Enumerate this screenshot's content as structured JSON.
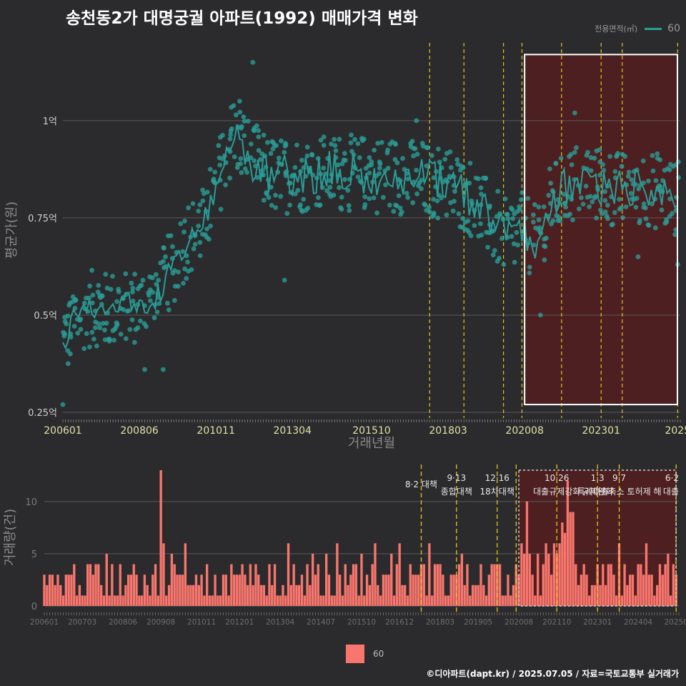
{
  "title": "송천동2가 대명궁궐 아파트(1992) 매매가격 변화",
  "caption": "©디아파트(dapt.kr) / 2025.07.05 / 자료=국토교통부 실거래가",
  "colors": {
    "background": "#2b2b2d",
    "price_line": "#2a9d97",
    "price_point": "#2a9d97",
    "volume_bar": "#f8766d",
    "policy_line": "#e6c619",
    "highlight_fill": "#5a1c1e",
    "grid": "#5a5a5a"
  },
  "legend_top": {
    "title": "전용면적(㎡)",
    "label": "60"
  },
  "legend_bottom": {
    "label": "60"
  },
  "chart_data": [
    {
      "type": "line",
      "xlabel": "거래년월",
      "ylabel": "평균가(원)",
      "x_range": [
        "2006-01",
        "2025-07"
      ],
      "ylim": [
        0.25,
        1.2
      ],
      "y_ticks": [
        {
          "value": 0.25,
          "label": "0.25억"
        },
        {
          "value": 0.5,
          "label": "0.5억"
        },
        {
          "value": 0.75,
          "label": "0.75억"
        },
        {
          "value": 1.0,
          "label": "1억"
        }
      ],
      "x_ticks": [
        "200601",
        "200806",
        "201011",
        "201304",
        "201510",
        "201803",
        "202008",
        "202301",
        "202506"
      ],
      "x_tick_labels": [
        "200601",
        "200806",
        "201011",
        "201304",
        "201510",
        "201803",
        "202008",
        "202301",
        "2025"
      ],
      "policy_lines": [
        "2017-08",
        "2018-09",
        "2019-12",
        "2020-07",
        "2021-10",
        "2023-01",
        "2023-09",
        "2025-06"
      ],
      "highlight_range": [
        "2020-08",
        "2025-07"
      ],
      "series": [
        {
          "name": "60",
          "anchors": [
            [
              "2006-01",
              0.42
            ],
            [
              "2006-06",
              0.5
            ],
            [
              "2007-01",
              0.52
            ],
            [
              "2007-06",
              0.51
            ],
            [
              "2008-01",
              0.53
            ],
            [
              "2008-06",
              0.52
            ],
            [
              "2009-01",
              0.55
            ],
            [
              "2009-06",
              0.62
            ],
            [
              "2009-12",
              0.69
            ],
            [
              "2010-06",
              0.73
            ],
            [
              "2010-11",
              0.82
            ],
            [
              "2011-03",
              0.92
            ],
            [
              "2011-06",
              0.97
            ],
            [
              "2011-10",
              0.92
            ],
            [
              "2012-06",
              0.86
            ],
            [
              "2013-04",
              0.86
            ],
            [
              "2014-06",
              0.87
            ],
            [
              "2015-10",
              0.86
            ],
            [
              "2016-06",
              0.86
            ],
            [
              "2017-06",
              0.85
            ],
            [
              "2018-03",
              0.84
            ],
            [
              "2018-12",
              0.8
            ],
            [
              "2019-06",
              0.75
            ],
            [
              "2020-01",
              0.7
            ],
            [
              "2020-08",
              0.72
            ],
            [
              "2021-01",
              0.68
            ],
            [
              "2021-06",
              0.78
            ],
            [
              "2021-10",
              0.82
            ],
            [
              "2022-06",
              0.85
            ],
            [
              "2023-01",
              0.83
            ],
            [
              "2023-09",
              0.82
            ],
            [
              "2024-06",
              0.83
            ],
            [
              "2025-06",
              0.8
            ]
          ],
          "noise": 0.045
        }
      ],
      "points": [
        [
          "2006-01",
          0.27
        ],
        [
          "2011-08",
          1.05
        ],
        [
          "2012-01",
          1.15
        ],
        [
          "2008-08",
          0.36
        ],
        [
          "2009-03",
          0.36
        ],
        [
          "2013-01",
          0.59
        ],
        [
          "2021-02",
          0.5
        ],
        [
          "2022-03",
          1.02
        ],
        [
          "2017-03",
          1.0
        ],
        [
          "2024-03",
          0.65
        ],
        [
          "2025-06",
          0.63
        ]
      ]
    },
    {
      "type": "bar",
      "xlabel": "",
      "ylabel": "거래량(건)",
      "ylim": [
        0,
        13
      ],
      "y_ticks": [
        0,
        5,
        10
      ],
      "x_ticks": [
        "200601",
        "200703",
        "200806",
        "200908",
        "201011",
        "201201",
        "201304",
        "201407",
        "201510",
        "201612",
        "201803",
        "201905",
        "202008",
        "202110",
        "202301",
        "202404",
        "202506"
      ],
      "x_tick_labels": [
        "200601",
        "200703",
        "200806",
        "200908",
        "201011",
        "201201",
        "201304",
        "201407",
        "201510",
        "201612",
        "201803",
        "201905",
        "202008",
        "202110",
        "202301",
        "202404",
        "20250"
      ],
      "peaks": [
        [
          "2009-08",
          13
        ],
        [
          "2022-02",
          12
        ],
        [
          "2022-03",
          9
        ],
        [
          "2021-12",
          8
        ]
      ],
      "policy_lines": [
        "2017-08",
        "2018-09",
        "2019-12",
        "2020-07",
        "2021-10",
        "2023-01",
        "2023-09",
        "2025-06"
      ],
      "highlight_range": [
        "2020-08",
        "2025-07"
      ],
      "annotations": [
        {
          "date": "2017-08",
          "top": "",
          "bottom": "8·2 대책"
        },
        {
          "date": "2018-09",
          "top": "9·13",
          "bottom": "종합대책"
        },
        {
          "date": "2019-12",
          "top": "12·16",
          "bottom": "18차대책"
        },
        {
          "date": "2021-10",
          "top": "10·26",
          "bottom": "대출규제강화"
        },
        {
          "date": "2023-01",
          "top": "1·3",
          "bottom": "규제완화"
        },
        {
          "date": "2023-09",
          "top": "9·7",
          "bottom": "특례대출축소 토허제 해"
        },
        {
          "date": "2025-06",
          "top": "6·2",
          "bottom": "대출"
        }
      ]
    }
  ]
}
